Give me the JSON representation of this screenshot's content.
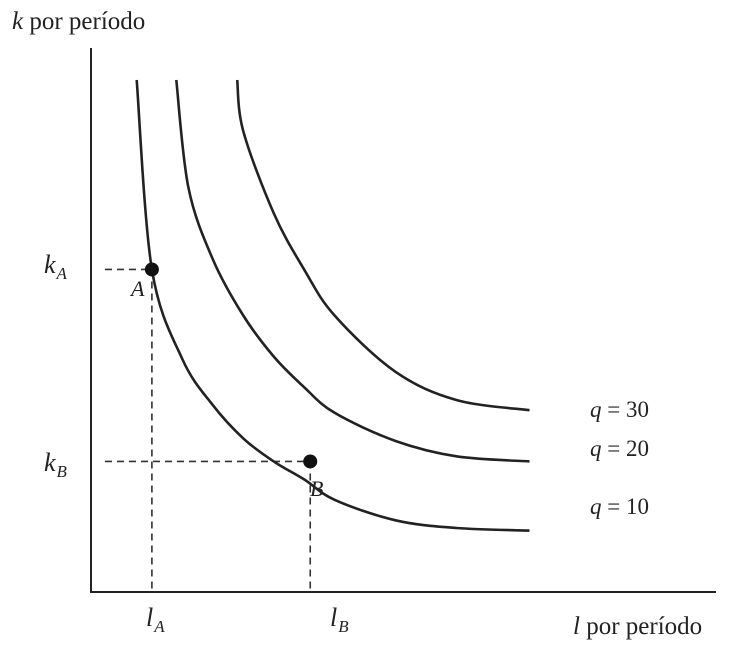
{
  "chart_data": {
    "type": "line",
    "title": "",
    "xlabel": {
      "symbol": "l",
      "text": " por período"
    },
    "ylabel": {
      "symbol": "k",
      "text": " por período"
    },
    "xticks": [
      {
        "base": "l",
        "sub": "A"
      },
      {
        "base": "l",
        "sub": "B"
      }
    ],
    "yticks": [
      {
        "base": "k",
        "sub": "A"
      },
      {
        "base": "k",
        "sub": "B"
      }
    ],
    "xlim": [
      0,
      10
    ],
    "ylim": [
      0,
      10
    ],
    "grid": false,
    "series": [
      {
        "name": {
          "symbol": "q",
          "text": " = 10"
        },
        "points": [
          [
            0.75,
            10.0
          ],
          [
            1.0,
            6.3
          ],
          [
            1.5,
            4.55
          ],
          [
            2.0,
            3.65
          ],
          [
            2.5,
            3.0
          ],
          [
            3.0,
            2.55
          ],
          [
            3.5,
            2.2
          ],
          [
            4.0,
            1.8
          ],
          [
            5.0,
            1.4
          ],
          [
            6.0,
            1.25
          ],
          [
            7.2,
            1.2
          ]
        ]
      },
      {
        "name": {
          "symbol": "q",
          "text": " = 20"
        },
        "points": [
          [
            1.4,
            10.0
          ],
          [
            1.6,
            7.9
          ],
          [
            2.0,
            6.5
          ],
          [
            2.5,
            5.4
          ],
          [
            3.0,
            4.6
          ],
          [
            3.5,
            4.0
          ],
          [
            4.0,
            3.5
          ],
          [
            5.0,
            2.95
          ],
          [
            6.0,
            2.65
          ],
          [
            7.2,
            2.55
          ]
        ]
      },
      {
        "name": {
          "symbol": "q",
          "text": " = 30"
        },
        "points": [
          [
            2.4,
            10.0
          ],
          [
            2.5,
            9.0
          ],
          [
            3.0,
            7.4
          ],
          [
            3.5,
            6.3
          ],
          [
            4.0,
            5.4
          ],
          [
            5.0,
            4.3
          ],
          [
            6.0,
            3.75
          ],
          [
            7.2,
            3.55
          ]
        ]
      }
    ],
    "highlighted_points": [
      {
        "label": "A",
        "x": 1.0,
        "y": 6.3,
        "x_tick": "lA",
        "y_tick": "kA"
      },
      {
        "label": "B",
        "x": 3.6,
        "y": 2.55,
        "x_tick": "lB",
        "y_tick": "kB"
      }
    ]
  }
}
